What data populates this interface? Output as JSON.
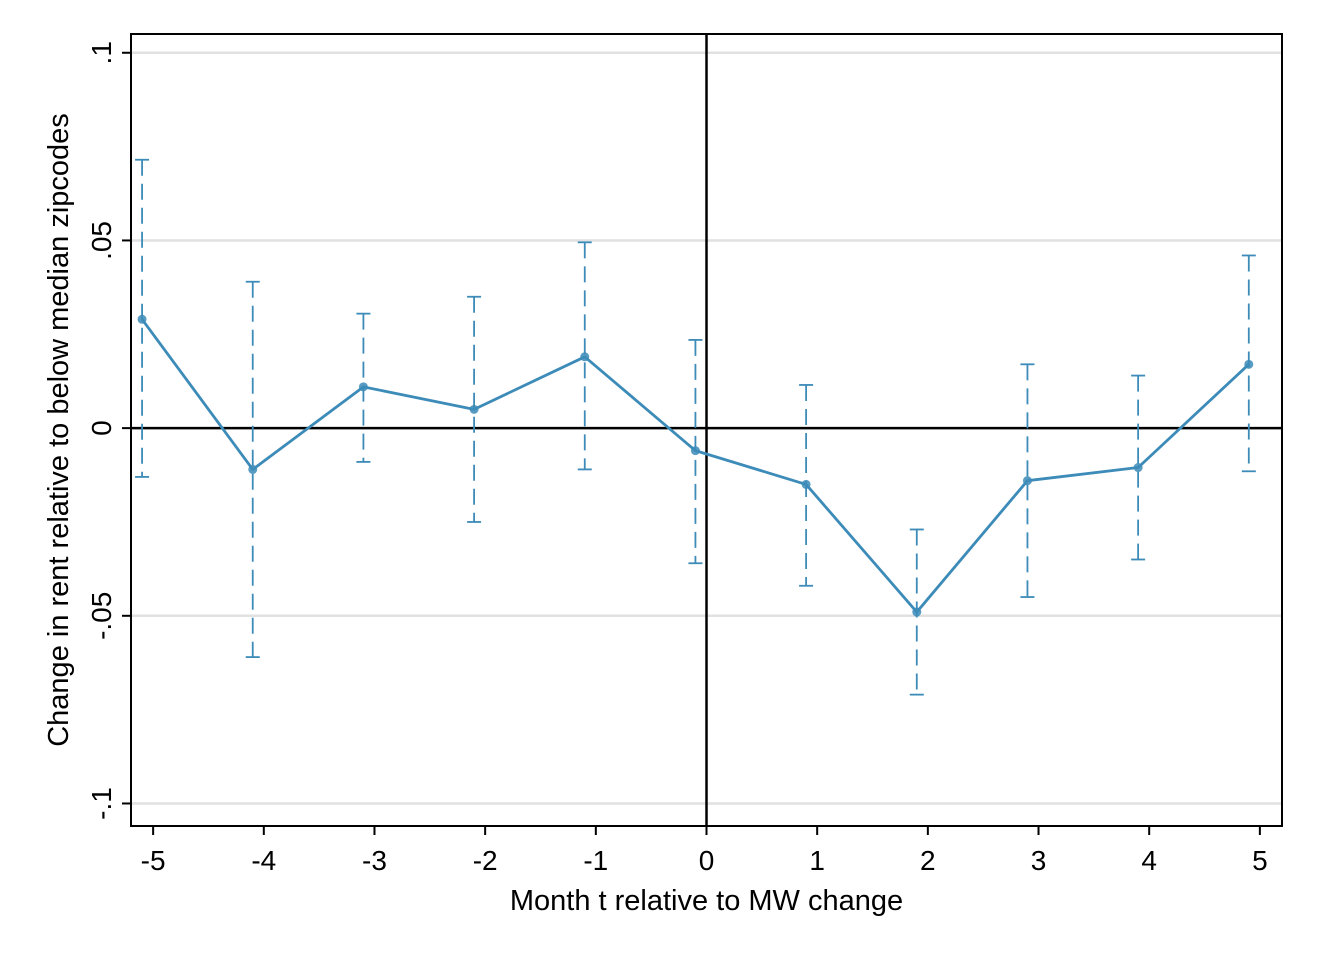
{
  "chart_data": {
    "type": "line",
    "title": "",
    "xlabel": "Month t relative to MW change",
    "ylabel": "Change in rent relative to below median zipcodes",
    "xlim": [
      -5.2,
      5.2
    ],
    "ylim": [
      -0.106,
      0.105
    ],
    "x_ticks": [
      -5,
      -4,
      -3,
      -2,
      -1,
      0,
      1,
      2,
      3,
      4,
      5
    ],
    "x_tick_labels": [
      "-5",
      "-4",
      "-3",
      "-2",
      "-1",
      "0",
      "1",
      "2",
      "3",
      "4",
      "5"
    ],
    "y_ticks": [
      -0.1,
      -0.05,
      0,
      0.05,
      0.1
    ],
    "y_tick_labels": [
      "-.1",
      "-.05",
      "0",
      ".05",
      ".1"
    ],
    "grid": "horizontal",
    "reference_lines": {
      "x": 0,
      "y": 0
    },
    "series_color": "#3c8bb8",
    "gridline_color": "#e1e1e1",
    "series": [
      {
        "x": [
          -5.1,
          -4.1,
          -3.1,
          -2.1,
          -1.1,
          -0.1,
          0.9,
          1.9,
          2.9,
          3.9,
          4.9
        ],
        "values": [
          0.029,
          -0.011,
          0.011,
          0.005,
          0.019,
          -0.006,
          -0.015,
          -0.049,
          -0.014,
          -0.0105,
          0.017
        ],
        "ci_lower": [
          -0.013,
          -0.061,
          -0.009,
          -0.025,
          -0.011,
          -0.036,
          -0.042,
          -0.071,
          -0.045,
          -0.035,
          -0.0115
        ],
        "ci_upper": [
          0.0715,
          0.039,
          0.0305,
          0.035,
          0.0495,
          0.0235,
          0.0115,
          -0.027,
          0.017,
          0.014,
          0.046
        ]
      }
    ]
  }
}
